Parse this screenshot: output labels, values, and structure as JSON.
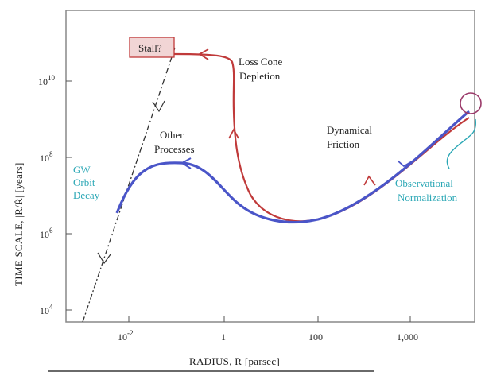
{
  "colors": {
    "red_track": "#c03a3a",
    "blue_track": "#4a55c8",
    "cyan_note": "#2aa7b5",
    "frame": "#888888",
    "text": "#222222",
    "stall_box": "#f1d5d5"
  },
  "axes": {
    "xlabel": "RADIUS, R [parsec]",
    "ylabel": "TIME SCALE, |R/Ṙ| [years]",
    "xticks": [
      {
        "base": "10",
        "exp": "-2"
      },
      {
        "text": "1"
      },
      {
        "text": "100"
      },
      {
        "text": "1,000"
      }
    ],
    "yticks": [
      {
        "base": "10",
        "exp": "4"
      },
      {
        "base": "10",
        "exp": "6"
      },
      {
        "base": "10",
        "exp": "8"
      },
      {
        "base": "10",
        "exp": "10"
      }
    ]
  },
  "annotations": {
    "stall": "Stall?",
    "loss_cone": [
      "Loss Cone",
      "Depletion"
    ],
    "other_processes": [
      "Other",
      "Processes"
    ],
    "dynamical_friction": [
      "Dynamical",
      "Friction"
    ],
    "gw_decay": [
      "GW",
      "Orbit",
      "Decay"
    ],
    "observational": [
      "Observational",
      "Normalization"
    ]
  }
}
